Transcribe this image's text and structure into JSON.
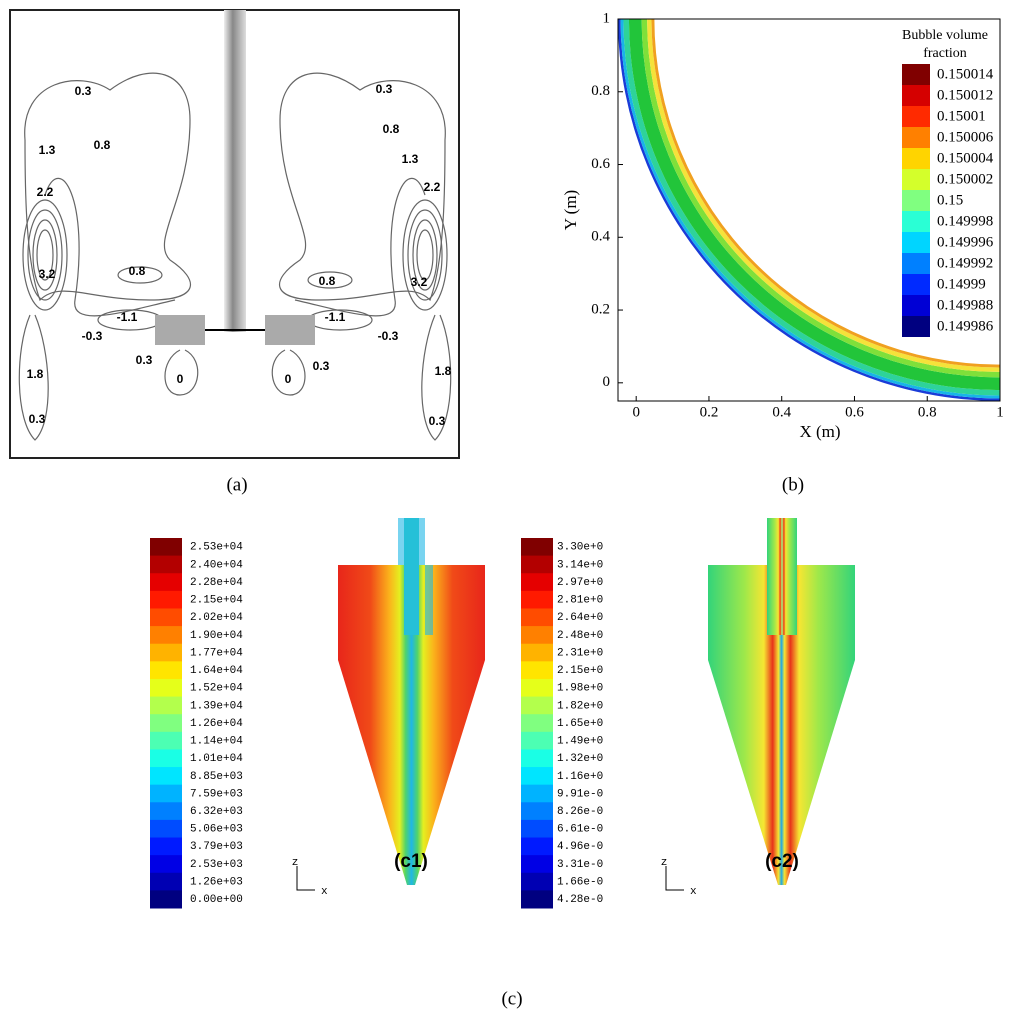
{
  "panel_a": {
    "caption": "(a)",
    "contour_labels": [
      "0.3",
      "0.8",
      "1.3",
      "2.2",
      "3.2",
      "0.8",
      "-1.1",
      "-0.3",
      "0.3",
      "0",
      "1.8",
      "0.3",
      "0.3",
      "0.8",
      "1.3",
      "2.2",
      "3.2",
      "0.8",
      "-1.1",
      "-0.3",
      "0.3",
      "0",
      "1.8",
      "0.3"
    ]
  },
  "panel_b": {
    "caption": "(b)",
    "x_label": "X (m)",
    "y_label": "Y (m)",
    "xlim": [
      -0.05,
      1
    ],
    "ylim": [
      -0.05,
      1
    ],
    "xticks": [
      0,
      0.2,
      0.4,
      0.6,
      0.8,
      1
    ],
    "yticks": [
      0,
      0.2,
      0.4,
      0.6,
      0.8,
      1
    ],
    "legend_title": "Bubble volume fraction",
    "legend_labels": [
      "0.150014",
      "0.150012",
      "0.15001",
      "0.150006",
      "0.150004",
      "0.150002",
      "0.15",
      "0.149998",
      "0.149996",
      "0.149992",
      "0.14999",
      "0.149988",
      "0.149986"
    ]
  },
  "panel_c": {
    "caption": "(c)",
    "c1": {
      "caption": "(c1)",
      "legend_labels": [
        "2.53e+04",
        "2.40e+04",
        "2.28e+04",
        "2.15e+04",
        "2.02e+04",
        "1.90e+04",
        "1.77e+04",
        "1.64e+04",
        "1.52e+04",
        "1.39e+04",
        "1.26e+04",
        "1.14e+04",
        "1.01e+04",
        "8.85e+03",
        "7.59e+03",
        "6.32e+03",
        "5.06e+03",
        "3.79e+03",
        "2.53e+03",
        "1.26e+03",
        "0.00e+00"
      ],
      "axis_labels": [
        "z",
        "x"
      ]
    },
    "c2": {
      "caption": "(c2)",
      "legend_labels": [
        "3.30e+0",
        "3.14e+0",
        "2.97e+0",
        "2.81e+0",
        "2.64e+0",
        "2.48e+0",
        "2.31e+0",
        "2.15e+0",
        "1.98e+0",
        "1.82e+0",
        "1.65e+0",
        "1.49e+0",
        "1.32e+0",
        "1.16e+0",
        "9.91e-0",
        "8.26e-0",
        "6.61e-0",
        "4.96e-0",
        "3.31e-0",
        "1.66e-0",
        "4.28e-0"
      ],
      "axis_labels": [
        "z",
        "x"
      ]
    }
  }
}
